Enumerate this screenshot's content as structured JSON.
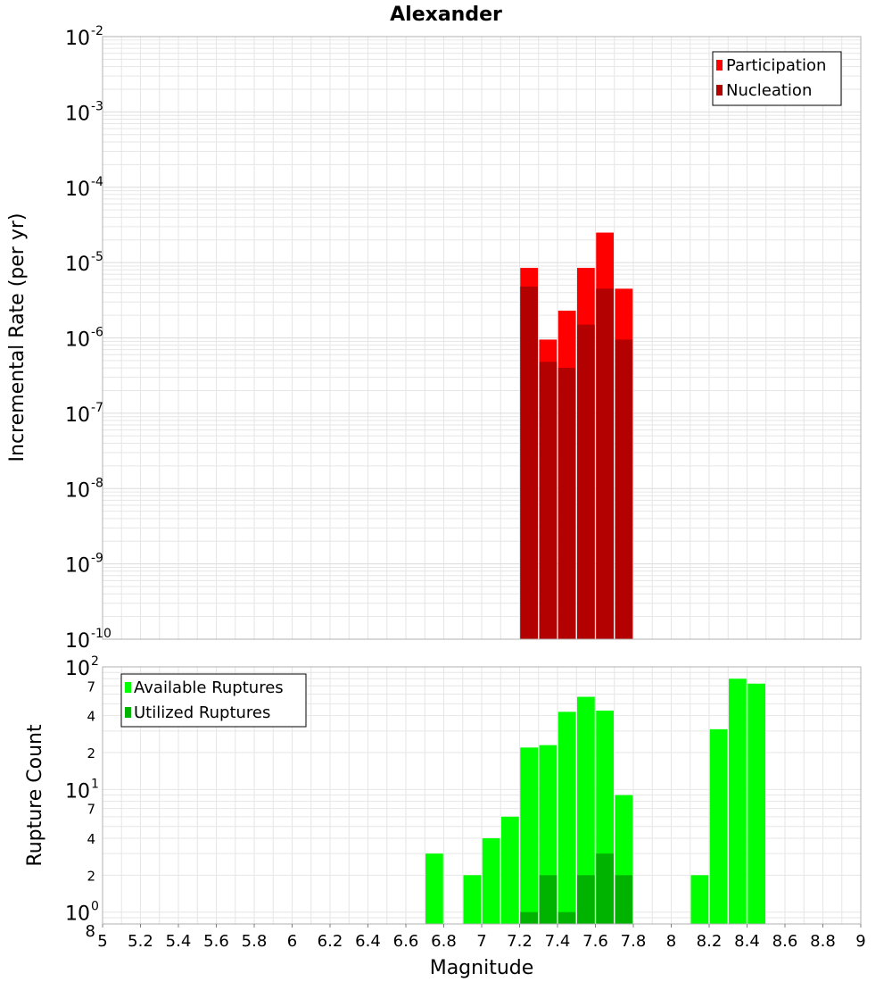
{
  "colors": {
    "participation": "#ff0000",
    "nucleation": "#b30000",
    "available": "#00ff00",
    "utilized": "#00b300",
    "grid": "#e6e6e6",
    "frame": "#b0b0b0"
  },
  "chart_data": [
    {
      "type": "bar",
      "title": "Alexander",
      "xlabel": "",
      "ylabel": "Incremental Rate (per yr)",
      "yscale": "log",
      "ylim": [
        1e-10,
        0.01
      ],
      "y_major_ticks": [
        {
          "base": "10",
          "exp": "-10",
          "value": 1e-10
        },
        {
          "base": "10",
          "exp": "-9",
          "value": 1e-09
        },
        {
          "base": "10",
          "exp": "-8",
          "value": 1e-08
        },
        {
          "base": "10",
          "exp": "-7",
          "value": 1e-07
        },
        {
          "base": "10",
          "exp": "-6",
          "value": 1e-06
        },
        {
          "base": "10",
          "exp": "-5",
          "value": 1e-05
        },
        {
          "base": "10",
          "exp": "-4",
          "value": 0.0001
        },
        {
          "base": "10",
          "exp": "-3",
          "value": 0.001
        },
        {
          "base": "10",
          "exp": "-2",
          "value": 0.01
        }
      ],
      "xlim": [
        5,
        9
      ],
      "legend": {
        "position": "top-right",
        "entries": [
          {
            "label": "Participation",
            "color_key": "participation"
          },
          {
            "label": "Nucleation",
            "color_key": "nucleation"
          }
        ]
      },
      "series": [
        {
          "name": "Participation",
          "x": [
            7.25,
            7.35,
            7.45,
            7.55,
            7.65,
            7.75
          ],
          "values": [
            8.5e-06,
            9.5e-07,
            2.3e-06,
            8.5e-06,
            2.5e-05,
            4.5e-06
          ]
        },
        {
          "name": "Nucleation",
          "x": [
            7.25,
            7.35,
            7.45,
            7.55,
            7.65,
            7.75
          ],
          "values": [
            4.8e-06,
            4.8e-07,
            4e-07,
            1.5e-06,
            4.5e-06,
            9.5e-07
          ]
        }
      ]
    },
    {
      "type": "bar",
      "title": "",
      "xlabel": "Magnitude",
      "ylabel": "Rupture Count",
      "yscale": "log",
      "ylim": [
        0.8,
        100
      ],
      "y_major_ticks": [
        {
          "base": "10",
          "exp": "0",
          "value": 1
        },
        {
          "base": "10",
          "exp": "1",
          "value": 10
        },
        {
          "base": "10",
          "exp": "2",
          "value": 100
        }
      ],
      "y_minor_labels": [
        {
          "label": "8",
          "value": 0.8
        },
        {
          "label": "2",
          "value": 2
        },
        {
          "label": "4",
          "value": 4
        },
        {
          "label": "7",
          "value": 7
        },
        {
          "label": "2",
          "value": 20
        },
        {
          "label": "4",
          "value": 40
        },
        {
          "label": "7",
          "value": 70
        }
      ],
      "xlim": [
        5,
        9
      ],
      "x_ticks": [
        "5",
        "5.2",
        "5.4",
        "5.6",
        "5.8",
        "6",
        "6.2",
        "6.4",
        "6.6",
        "6.8",
        "7",
        "7.2",
        "7.4",
        "7.6",
        "7.8",
        "8",
        "8.2",
        "8.4",
        "8.6",
        "8.8",
        "9"
      ],
      "legend": {
        "position": "top-left",
        "entries": [
          {
            "label": "Available Ruptures",
            "color_key": "available"
          },
          {
            "label": "Utilized Ruptures",
            "color_key": "utilized"
          }
        ]
      },
      "series": [
        {
          "name": "Available Ruptures",
          "x": [
            6.75,
            6.95,
            7.05,
            7.15,
            7.25,
            7.35,
            7.45,
            7.55,
            7.65,
            7.75,
            8.15,
            8.25,
            8.35,
            8.45
          ],
          "values": [
            3,
            2,
            4,
            6,
            22,
            23,
            43,
            57,
            44,
            9,
            2,
            31,
            80,
            73
          ]
        },
        {
          "name": "Utilized Ruptures",
          "x": [
            7.25,
            7.35,
            7.45,
            7.55,
            7.65,
            7.75
          ],
          "values": [
            1,
            2,
            1,
            2,
            3,
            2
          ]
        }
      ]
    }
  ]
}
